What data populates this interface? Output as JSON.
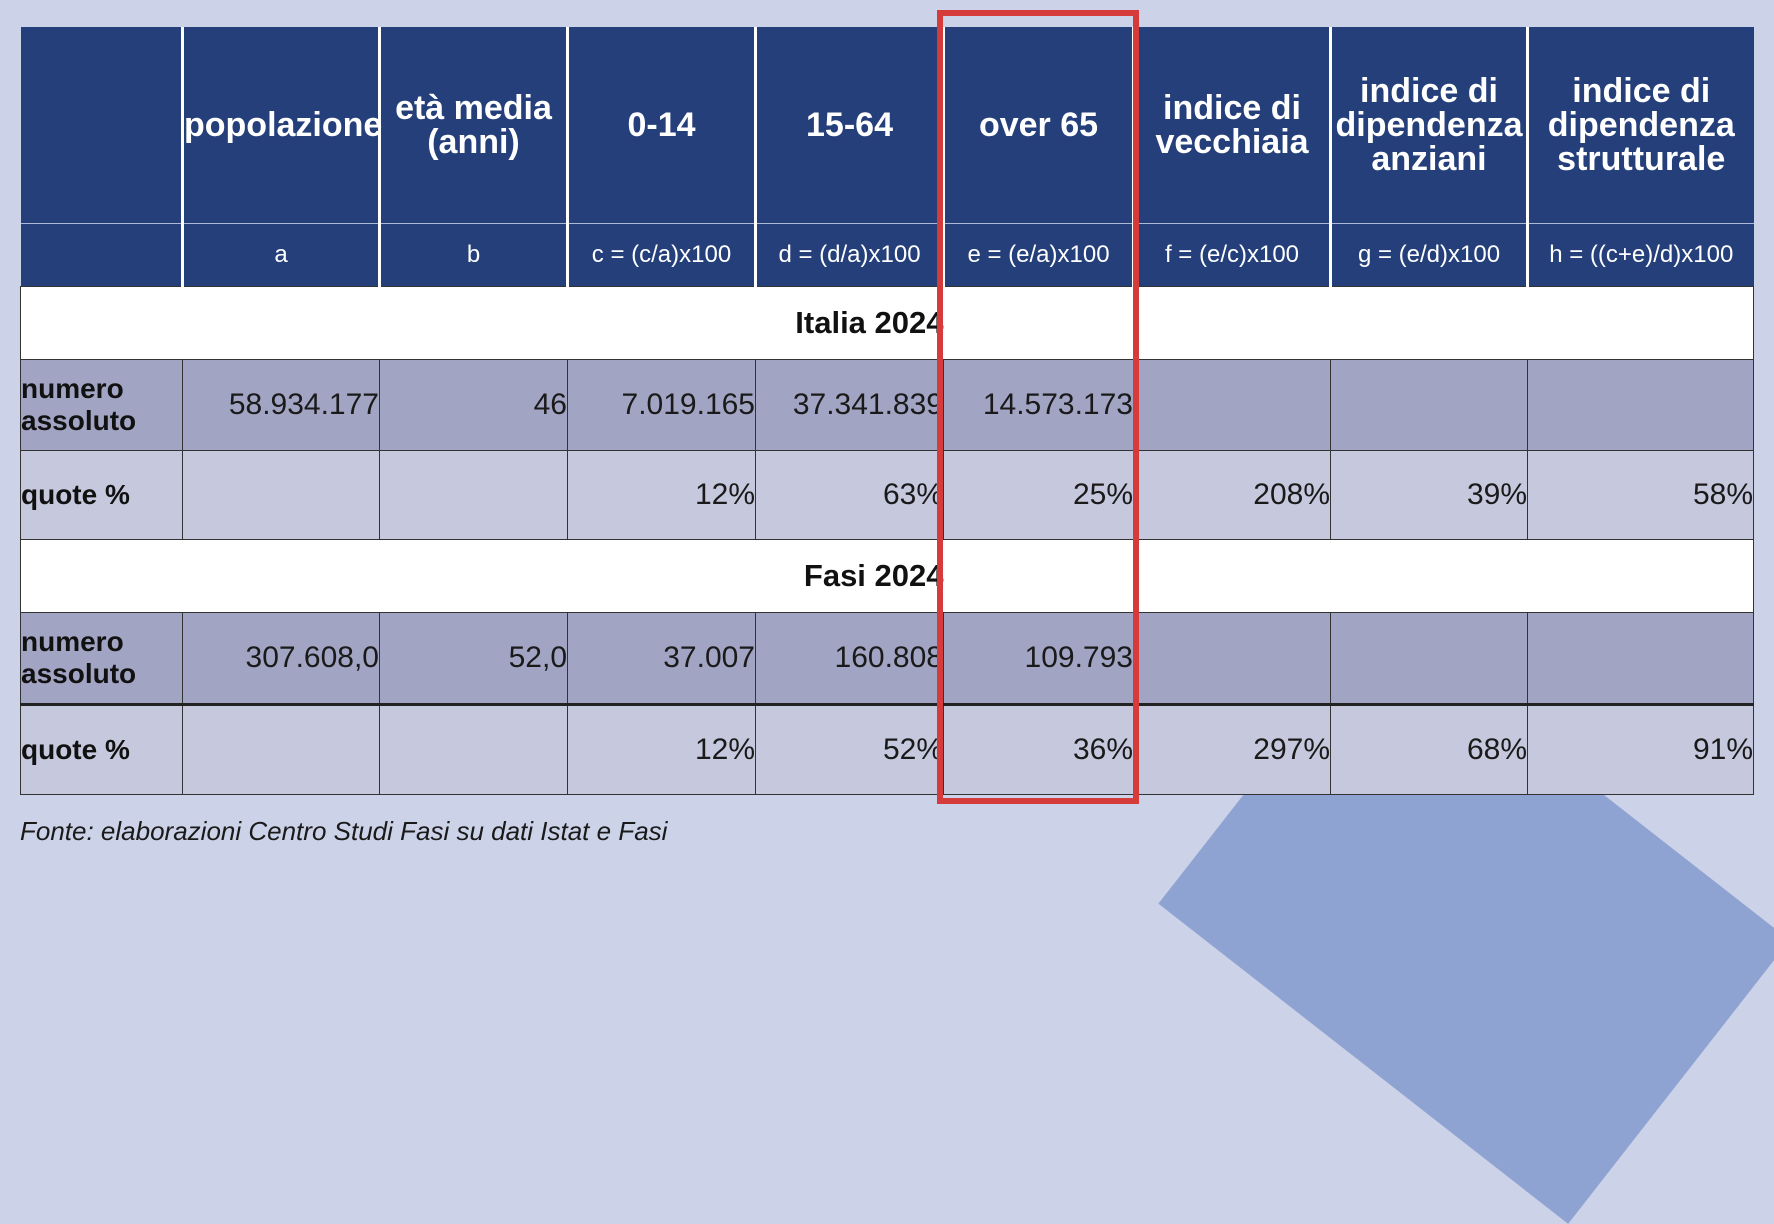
{
  "columns": [
    {
      "header": "",
      "formula": ""
    },
    {
      "header": "popolazione",
      "formula": "a"
    },
    {
      "header": "età media (anni)",
      "formula": "b"
    },
    {
      "header": "0-14",
      "formula": "c = (c/a)x100"
    },
    {
      "header": "15-64",
      "formula": "d = (d/a)x100"
    },
    {
      "header": "over 65",
      "formula": "e = (e/a)x100"
    },
    {
      "header": "indice di vecchiaia",
      "formula": "f = (e/c)x100"
    },
    {
      "header": "indice di dipendenza anziani",
      "formula": "g = (e/d)x100"
    },
    {
      "header": "indice di dipendenza strutturale",
      "formula": "h = ((c+e)/d)x100"
    }
  ],
  "sections": [
    {
      "title": "Italia 2024",
      "rows": [
        {
          "label": "numero assoluto",
          "cells": [
            "58.934.177",
            "46",
            "7.019.165",
            "37.341.839",
            "14.573.173",
            "",
            "",
            ""
          ]
        },
        {
          "label": "quote %",
          "cells": [
            "",
            "",
            "12%",
            "63%",
            "25%",
            "208%",
            "39%",
            "58%"
          ]
        }
      ]
    },
    {
      "title": "Fasi 2024",
      "rows": [
        {
          "label": "numero assoluto",
          "cells": [
            "307.608,0",
            "52,0",
            "37.007",
            "160.808",
            "109.793",
            "",
            "",
            ""
          ]
        },
        {
          "label": "quote %",
          "cells": [
            "",
            "",
            "12%",
            "52%",
            "36%",
            "297%",
            "68%",
            "91%"
          ]
        }
      ]
    }
  ],
  "highlight": {
    "column": "over 65",
    "color": "#d63b3b"
  },
  "colors": {
    "header_bg": "#243f7a",
    "row_dark": "#a2a4c3",
    "row_light": "#c6c8dd",
    "page_bg": "#ccd2e7"
  },
  "source": "Fonte: elaborazioni Centro Studi Fasi su dati Istat e Fasi"
}
